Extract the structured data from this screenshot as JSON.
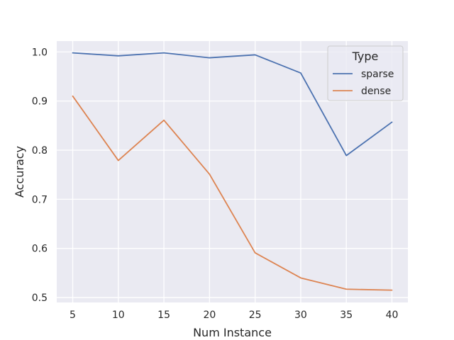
{
  "chart_data": {
    "type": "line",
    "title": "",
    "xlabel": "Num Instance",
    "ylabel": "Accuracy",
    "x": [
      5,
      10,
      15,
      20,
      25,
      30,
      35,
      40
    ],
    "xlim": [
      3.25,
      41.75
    ],
    "ylim": [
      0.49,
      1.022
    ],
    "xticks": [
      5,
      10,
      15,
      20,
      25,
      30,
      35,
      40
    ],
    "yticks": [
      0.5,
      0.6,
      0.7,
      0.8,
      0.9,
      1.0
    ],
    "ytick_labels": [
      "0.5",
      "0.6",
      "0.7",
      "0.8",
      "0.9",
      "1.0"
    ],
    "grid": true,
    "background": "#eaeaf2",
    "legend": {
      "title": "Type",
      "position": "top-right"
    },
    "series": [
      {
        "name": "sparse",
        "color": "#4c72b0",
        "values": [
          0.998,
          0.992,
          0.998,
          0.988,
          0.994,
          0.957,
          0.789,
          0.857
        ]
      },
      {
        "name": "dense",
        "color": "#dd8452",
        "values": [
          0.91,
          0.779,
          0.861,
          0.751,
          0.591,
          0.54,
          0.517,
          0.515
        ]
      }
    ]
  }
}
